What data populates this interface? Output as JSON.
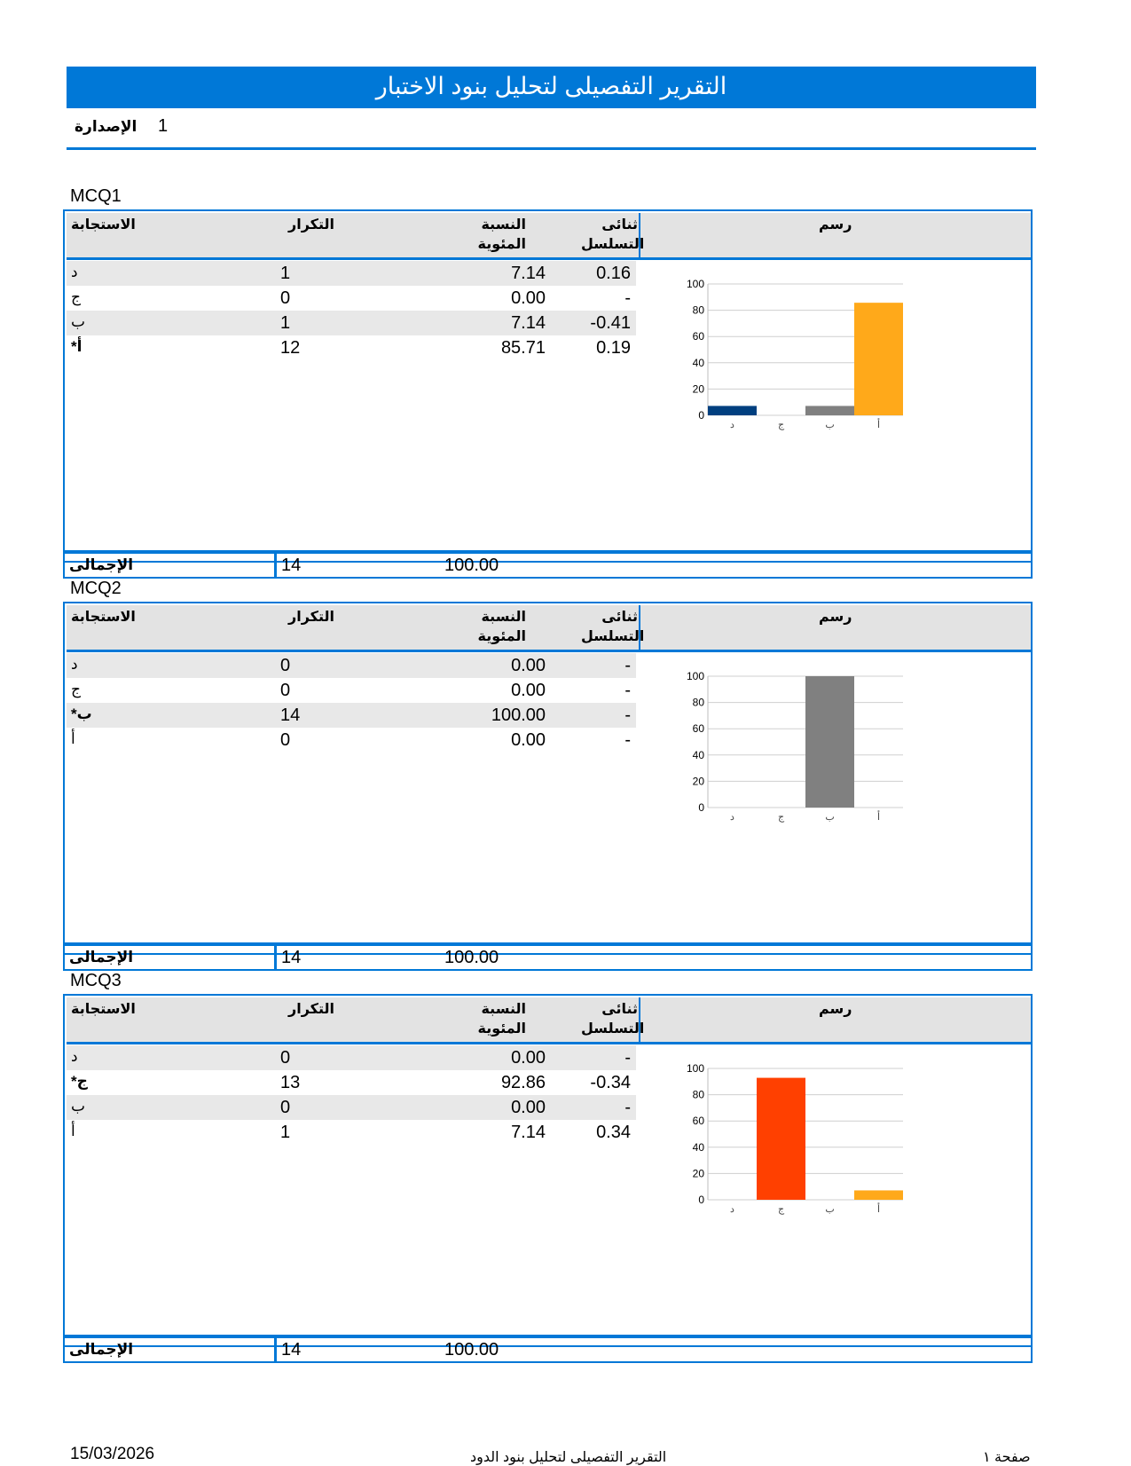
{
  "header": {
    "title": "التقرير التفصيلى لتحليل بنود الاختبار",
    "version_label": "الإصدارة",
    "version_value": "1"
  },
  "columns": {
    "response": "الاستجابة",
    "frequency": "التكرار",
    "percent_line1": "النسبة",
    "percent_line2": "المئوية",
    "disc_line1": "ثنائى",
    "disc_line2": "التسلسل",
    "chart": "رسم"
  },
  "total_label": "الإجمالى",
  "items": [
    {
      "title": "MCQ1",
      "rows": [
        {
          "response": "د",
          "key": false,
          "frequency": "1",
          "percent": "7.14",
          "disc": "0.16"
        },
        {
          "response": "ج",
          "key": false,
          "frequency": "0",
          "percent": "0.00",
          "disc": "-"
        },
        {
          "response": "ب",
          "key": false,
          "frequency": "1",
          "percent": "7.14",
          "disc": "-0.41"
        },
        {
          "response": "*أ",
          "key": true,
          "frequency": "12",
          "percent": "85.71",
          "disc": "0.19"
        }
      ],
      "total_frequency": "14",
      "total_percent": "100.00"
    },
    {
      "title": "MCQ2",
      "rows": [
        {
          "response": "د",
          "key": false,
          "frequency": "0",
          "percent": "0.00",
          "disc": "-"
        },
        {
          "response": "ج",
          "key": false,
          "frequency": "0",
          "percent": "0.00",
          "disc": "-"
        },
        {
          "response": "*ب",
          "key": true,
          "frequency": "14",
          "percent": "100.00",
          "disc": "-"
        },
        {
          "response": "أ",
          "key": false,
          "frequency": "0",
          "percent": "0.00",
          "disc": "-"
        }
      ],
      "total_frequency": "14",
      "total_percent": "100.00"
    },
    {
      "title": "MCQ3",
      "rows": [
        {
          "response": "د",
          "key": false,
          "frequency": "0",
          "percent": "0.00",
          "disc": "-"
        },
        {
          "response": "*ج",
          "key": true,
          "frequency": "13",
          "percent": "92.86",
          "disc": "-0.34"
        },
        {
          "response": "ب",
          "key": false,
          "frequency": "0",
          "percent": "0.00",
          "disc": "-"
        },
        {
          "response": "أ",
          "key": false,
          "frequency": "1",
          "percent": "7.14",
          "disc": "0.34"
        }
      ],
      "total_frequency": "14",
      "total_percent": "100.00"
    }
  ],
  "chart_data": [
    {
      "type": "bar",
      "categories": [
        "د",
        "ج",
        "ب",
        "أ"
      ],
      "values": [
        7.14,
        0,
        7.14,
        85.71
      ],
      "colors": [
        "#003f7f",
        "#ffffff",
        "#808080",
        "#ffa91a"
      ],
      "ylim": [
        0,
        100
      ],
      "yticks": [
        "0",
        "20",
        "40",
        "60",
        "80",
        "100"
      ],
      "grid": true
    },
    {
      "type": "bar",
      "categories": [
        "د",
        "ج",
        "ب",
        "أ"
      ],
      "values": [
        0,
        0,
        100,
        0
      ],
      "colors": [
        "#003f7f",
        "#ffffff",
        "#808080",
        "#ffa91a"
      ],
      "ylim": [
        0,
        100
      ],
      "yticks": [
        "0",
        "20",
        "40",
        "60",
        "80",
        "100"
      ],
      "grid": true
    },
    {
      "type": "bar",
      "categories": [
        "د",
        "ج",
        "ب",
        "أ"
      ],
      "values": [
        0,
        92.86,
        0,
        7.14
      ],
      "colors": [
        "#003f7f",
        "#ff4000",
        "#808080",
        "#ffa91a"
      ],
      "ylim": [
        0,
        100
      ],
      "yticks": [
        "0",
        "20",
        "40",
        "60",
        "80",
        "100"
      ],
      "grid": true
    }
  ],
  "footer": {
    "date": "15/03/2026",
    "title": "التقرير التفصيلى لتحليل بنود الدود",
    "page": "صفحة ١"
  }
}
